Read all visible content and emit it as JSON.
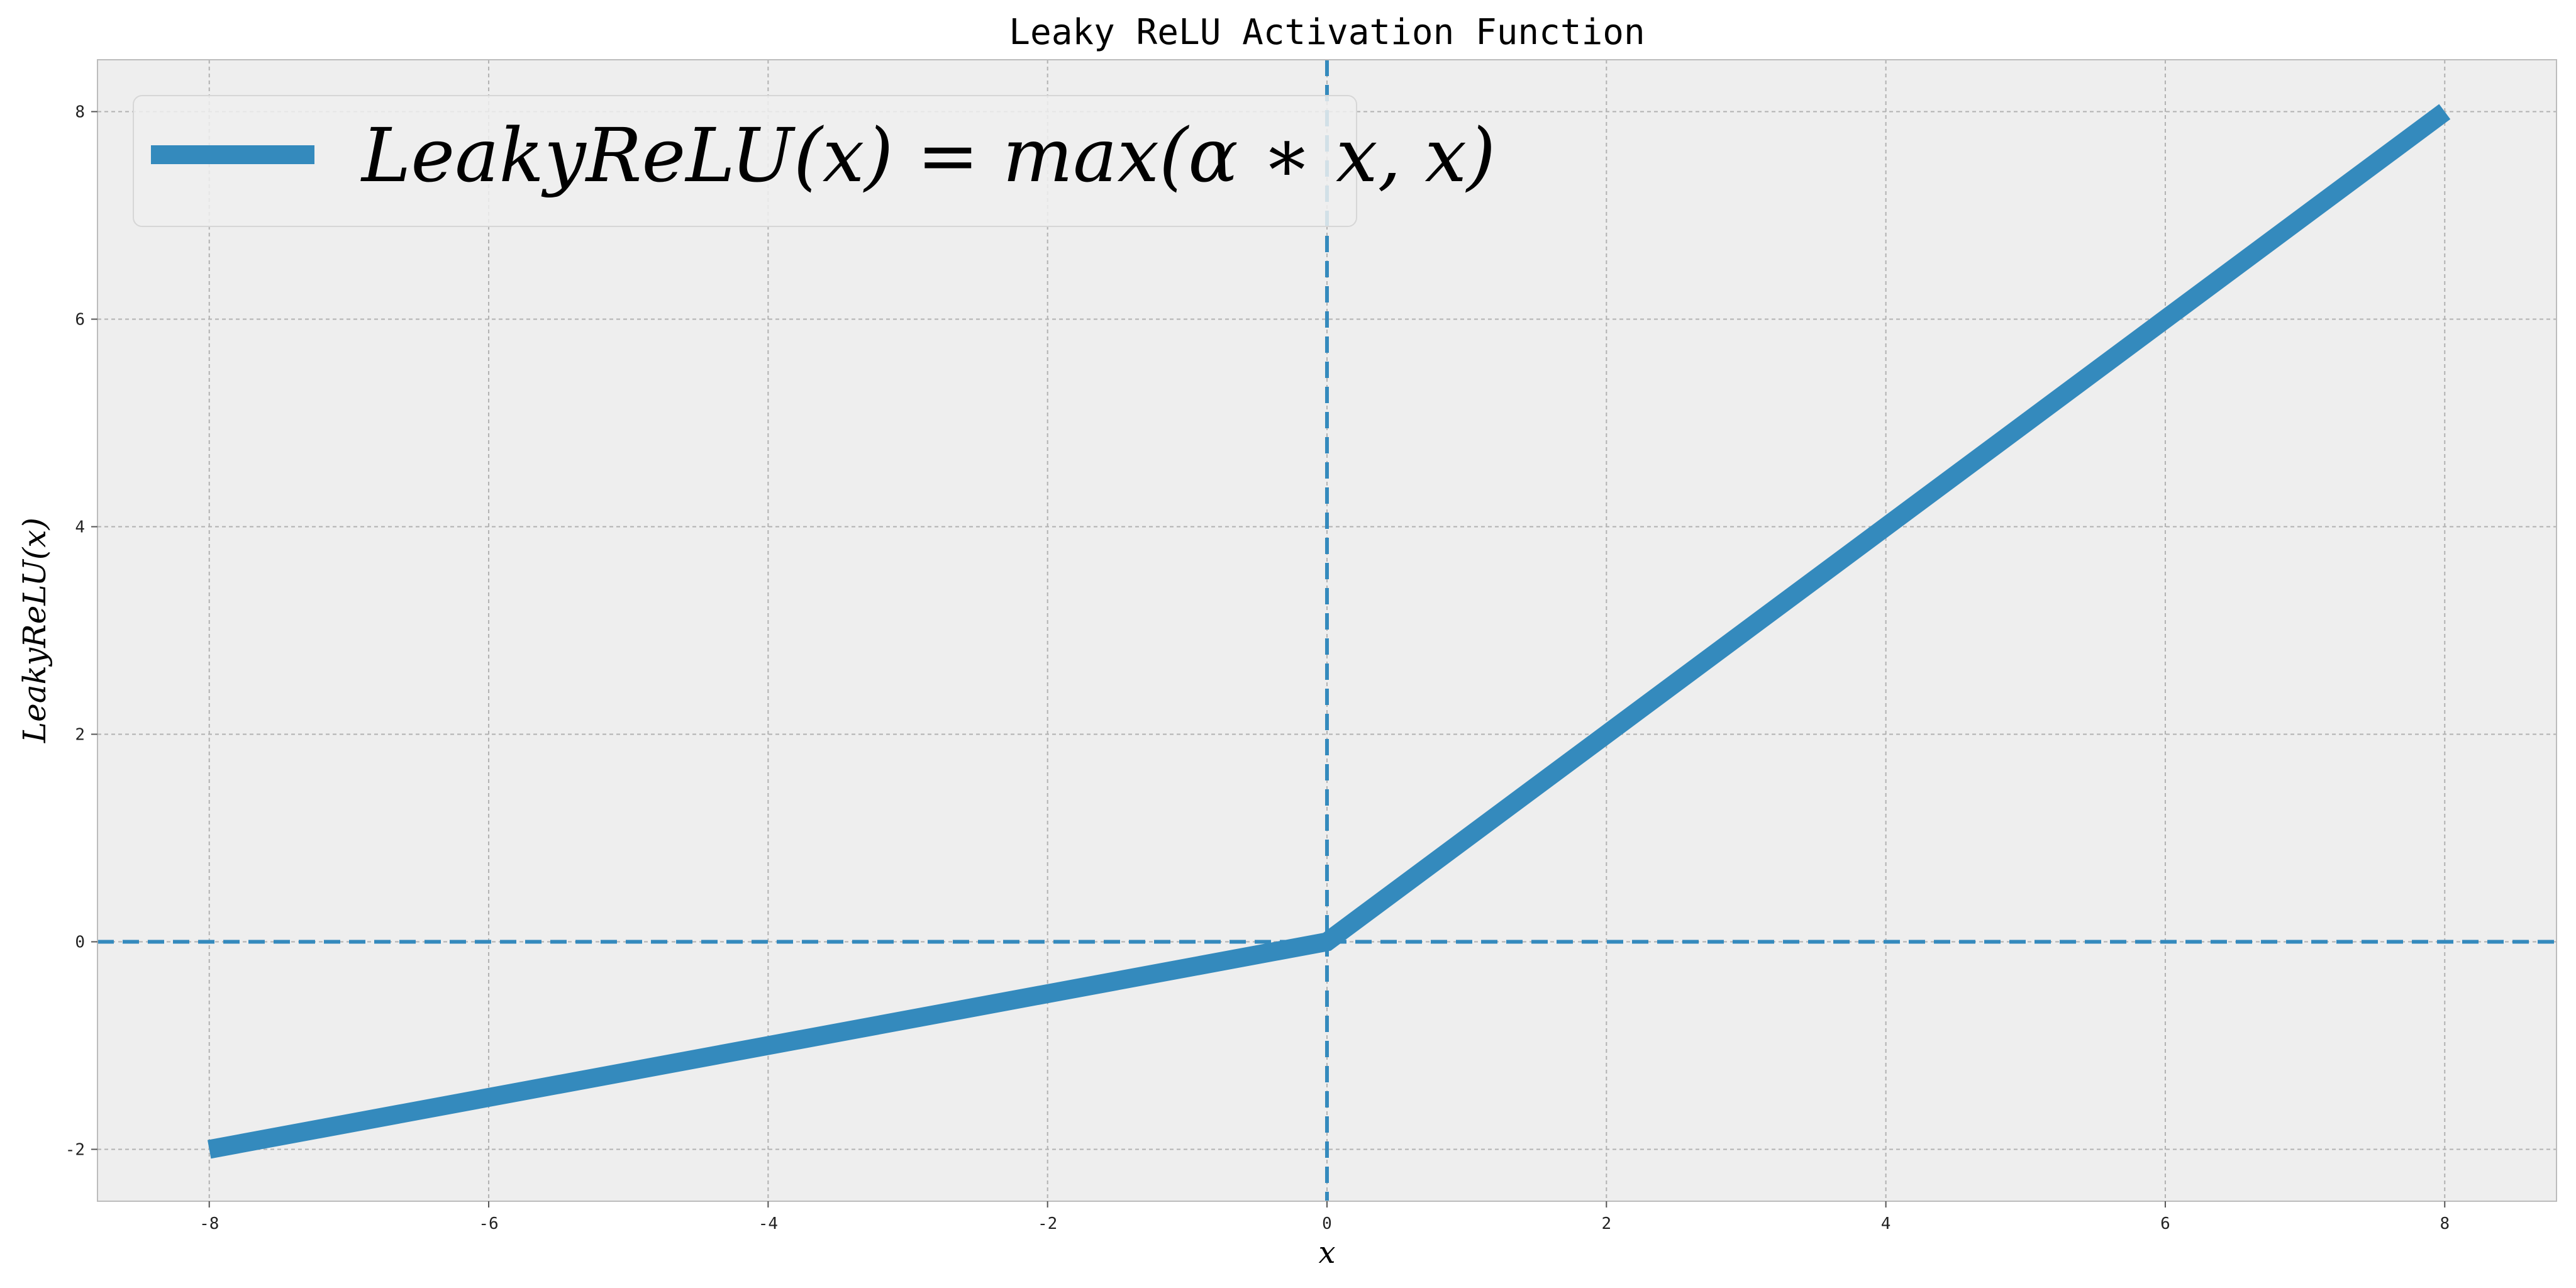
{
  "chart_data": {
    "type": "line",
    "title": "Leaky ReLU Activation Function",
    "xlabel": "x",
    "ylabel": "LeakyReLU(x)",
    "xlim": [
      -8.8,
      8.8
    ],
    "ylim": [
      -2.5,
      8.5
    ],
    "x_ticks": [
      -8,
      -6,
      -4,
      -2,
      0,
      2,
      4,
      6,
      8
    ],
    "y_ticks": [
      -2,
      0,
      2,
      4,
      6,
      8
    ],
    "grid": true,
    "legend_position": "upper-left",
    "reference_lines": {
      "vertical_x": 0,
      "horizontal_y": 0,
      "style": "dashed",
      "color": "#348ABD"
    },
    "series": [
      {
        "name": "LeakyReLU(x) = max(α ∗ x, x)",
        "color": "#348ABD",
        "x": [
          -8,
          0,
          8
        ],
        "y": [
          -2,
          0,
          8
        ]
      }
    ]
  },
  "colors": {
    "axes_background": "#EEEEEE",
    "figure_background": "#FFFFFF",
    "grid": "#B2B2B2",
    "spine": "#BCBCBC"
  }
}
